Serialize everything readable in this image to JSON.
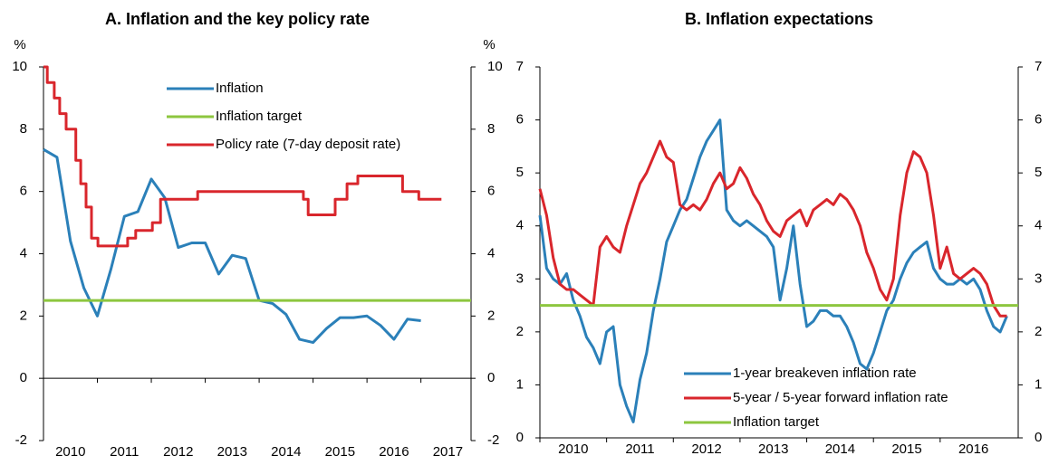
{
  "chart_data": [
    {
      "type": "line",
      "title": "A. Inflation and the key policy rate",
      "y_unit": "%",
      "xlim": [
        2010,
        2017.93
      ],
      "xticks": [
        2010,
        2011,
        2012,
        2013,
        2014,
        2015,
        2016,
        2017
      ],
      "ylim": [
        -2,
        10
      ],
      "yticks": [
        -2,
        0,
        2,
        4,
        6,
        8,
        10
      ],
      "y2lim": [
        -2,
        10
      ],
      "y2ticks": [
        -2,
        0,
        2,
        4,
        6,
        8,
        10
      ],
      "legend": "upper center",
      "grid": false,
      "series": [
        {
          "name": "Inflation",
          "color": "#2b80b9",
          "x": [
            2010,
            2010.25,
            2010.5,
            2010.75,
            2011,
            2011.25,
            2011.5,
            2011.75,
            2012,
            2012.25,
            2012.5,
            2012.75,
            2013,
            2013.25,
            2013.5,
            2013.75,
            2014,
            2014.25,
            2014.5,
            2014.75,
            2015,
            2015.25,
            2015.5,
            2015.75,
            2016,
            2016.25,
            2016.5,
            2016.75,
            2017
          ],
          "values": [
            7.35,
            7.1,
            4.4,
            2.9,
            2.0,
            3.5,
            5.2,
            5.35,
            6.4,
            5.8,
            4.2,
            4.35,
            4.35,
            3.35,
            3.95,
            3.85,
            2.5,
            2.4,
            2.05,
            1.25,
            1.15,
            1.6,
            1.95,
            1.95,
            2.0,
            1.7,
            1.25,
            1.9,
            1.85
          ]
        },
        {
          "name": "Inflation target",
          "color": "#8dc63f",
          "x": [
            2010,
            2017.93
          ],
          "values": [
            2.5,
            2.5
          ]
        },
        {
          "name": "Policy rate (7-day deposit rate)",
          "color": "#d9262c",
          "step": true,
          "x": [
            2010,
            2010.07,
            2010.2,
            2010.3,
            2010.42,
            2010.6,
            2010.69,
            2010.79,
            2010.89,
            2011.01,
            2011.56,
            2011.71,
            2012.02,
            2012.17,
            2012.86,
            2014.82,
            2014.91,
            2015.41,
            2015.63,
            2015.83,
            2016.66,
            2016.96,
            2017.38
          ],
          "values": [
            10,
            9.5,
            9,
            8.5,
            8,
            7,
            6.25,
            5.5,
            4.5,
            4.25,
            4.5,
            4.75,
            5,
            5.75,
            6,
            5.75,
            5.25,
            5.75,
            6.25,
            6.5,
            6,
            5.75,
            5.75
          ]
        }
      ]
    },
    {
      "type": "line",
      "title": "B. Inflation expectations",
      "xlim": [
        2010,
        2017.17
      ],
      "xticks": [
        2010,
        2011,
        2012,
        2013,
        2014,
        2015,
        2016
      ],
      "ylim": [
        0,
        7
      ],
      "yticks": [
        0,
        1,
        2,
        3,
        4,
        5,
        6,
        7
      ],
      "y2lim": [
        0,
        7
      ],
      "y2ticks": [
        0,
        1,
        2,
        3,
        4,
        5,
        6,
        7
      ],
      "legend": "lower center",
      "grid": false,
      "series": [
        {
          "name": "1-year breakeven inflation rate",
          "color": "#2b80b9",
          "x": [
            2010,
            2010.1,
            2010.2,
            2010.3,
            2010.4,
            2010.5,
            2010.6,
            2010.7,
            2010.8,
            2010.9,
            2011,
            2011.1,
            2011.2,
            2011.3,
            2011.4,
            2011.5,
            2011.6,
            2011.7,
            2011.8,
            2011.9,
            2012,
            2012.1,
            2012.2,
            2012.3,
            2012.4,
            2012.5,
            2012.6,
            2012.7,
            2012.8,
            2012.9,
            2013,
            2013.1,
            2013.2,
            2013.3,
            2013.4,
            2013.5,
            2013.6,
            2013.7,
            2013.8,
            2013.9,
            2014,
            2014.1,
            2014.2,
            2014.3,
            2014.4,
            2014.5,
            2014.6,
            2014.7,
            2014.8,
            2014.9,
            2015,
            2015.1,
            2015.2,
            2015.3,
            2015.4,
            2015.5,
            2015.6,
            2015.7,
            2015.8,
            2015.9,
            2016,
            2016.1,
            2016.2,
            2016.3,
            2016.4,
            2016.5,
            2016.6,
            2016.7,
            2016.8,
            2016.9,
            2017
          ],
          "values": [
            4.2,
            3.2,
            3.0,
            2.9,
            3.1,
            2.6,
            2.3,
            1.9,
            1.7,
            1.4,
            2.0,
            2.1,
            1.0,
            0.6,
            0.3,
            1.1,
            1.6,
            2.4,
            3.0,
            3.7,
            4.0,
            4.3,
            4.5,
            4.9,
            5.3,
            5.6,
            5.8,
            6.0,
            4.3,
            4.1,
            4.0,
            4.1,
            4.0,
            3.9,
            3.8,
            3.6,
            2.6,
            3.2,
            4.0,
            2.9,
            2.1,
            2.2,
            2.4,
            2.4,
            2.3,
            2.3,
            2.1,
            1.8,
            1.4,
            1.3,
            1.6,
            2.0,
            2.4,
            2.6,
            3.0,
            3.3,
            3.5,
            3.6,
            3.7,
            3.2,
            3.0,
            2.9,
            2.9,
            3.0,
            2.9,
            3.0,
            2.8,
            2.4,
            2.1,
            2.0,
            2.3
          ]
        },
        {
          "name": "5-year / 5-year forward inflation rate",
          "color": "#d9262c",
          "x": [
            2010,
            2010.1,
            2010.2,
            2010.3,
            2010.4,
            2010.5,
            2010.6,
            2010.7,
            2010.8,
            2010.9,
            2011,
            2011.1,
            2011.2,
            2011.3,
            2011.4,
            2011.5,
            2011.6,
            2011.7,
            2011.8,
            2011.9,
            2012,
            2012.1,
            2012.2,
            2012.3,
            2012.4,
            2012.5,
            2012.6,
            2012.7,
            2012.8,
            2012.9,
            2013,
            2013.1,
            2013.2,
            2013.3,
            2013.4,
            2013.5,
            2013.6,
            2013.7,
            2013.8,
            2013.9,
            2014,
            2014.1,
            2014.2,
            2014.3,
            2014.4,
            2014.5,
            2014.6,
            2014.7,
            2014.8,
            2014.9,
            2015,
            2015.1,
            2015.2,
            2015.3,
            2015.4,
            2015.5,
            2015.6,
            2015.7,
            2015.8,
            2015.9,
            2016,
            2016.1,
            2016.2,
            2016.3,
            2016.4,
            2016.5,
            2016.6,
            2016.7,
            2016.8,
            2016.9,
            2017
          ],
          "values": [
            4.7,
            4.2,
            3.4,
            2.9,
            2.8,
            2.8,
            2.7,
            2.6,
            2.5,
            3.6,
            3.8,
            3.6,
            3.5,
            4.0,
            4.4,
            4.8,
            5.0,
            5.3,
            5.6,
            5.3,
            5.2,
            4.4,
            4.3,
            4.4,
            4.3,
            4.5,
            4.8,
            5.0,
            4.7,
            4.8,
            5.1,
            4.9,
            4.6,
            4.4,
            4.1,
            3.9,
            3.8,
            4.1,
            4.2,
            4.3,
            4.0,
            4.3,
            4.4,
            4.5,
            4.4,
            4.6,
            4.5,
            4.3,
            4.0,
            3.5,
            3.2,
            2.8,
            2.6,
            3.0,
            4.2,
            5.0,
            5.4,
            5.3,
            5.0,
            4.2,
            3.2,
            3.6,
            3.1,
            3.0,
            3.1,
            3.2,
            3.1,
            2.9,
            2.5,
            2.3,
            2.3
          ]
        },
        {
          "name": "Inflation target",
          "color": "#8dc63f",
          "x": [
            2010,
            2017.17
          ],
          "values": [
            2.5,
            2.5
          ]
        }
      ]
    }
  ]
}
